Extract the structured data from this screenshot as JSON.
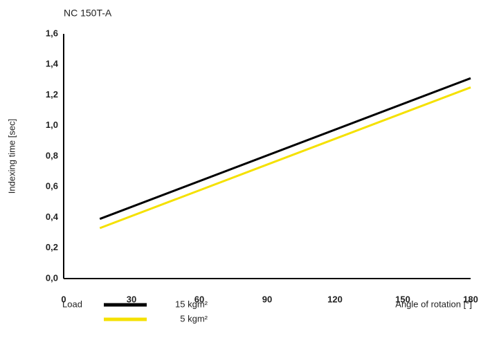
{
  "chart_data": {
    "type": "line",
    "title": "NC 150T-A",
    "y_label": "Indexing time [sec]",
    "x_label": "Angle of rotation [°]",
    "legend_title": "Load",
    "x": [
      16,
      180
    ],
    "series": [
      {
        "name": "15 kgm²",
        "color": "#000000",
        "values": [
          0.39,
          1.31
        ]
      },
      {
        "name": "5 kgm²",
        "color": "#f5e100",
        "values": [
          0.33,
          1.25
        ]
      }
    ],
    "xlim": [
      0,
      180
    ],
    "xticks": [
      0,
      30,
      60,
      90,
      120,
      150,
      180
    ],
    "ylim": [
      0,
      1.6
    ],
    "yticks": [
      {
        "value": 0,
        "label": "0,0"
      },
      {
        "value": 0.2,
        "label": "0,2"
      },
      {
        "value": 0.4,
        "label": "0,4"
      },
      {
        "value": 0.6,
        "label": "0,6"
      },
      {
        "value": 0.8,
        "label": "0,8"
      },
      {
        "value": 1.0,
        "label": "1,0"
      },
      {
        "value": 1.2,
        "label": "1,2"
      },
      {
        "value": 1.4,
        "label": "1,4"
      },
      {
        "value": 1.6,
        "label": "1,6"
      }
    ]
  }
}
